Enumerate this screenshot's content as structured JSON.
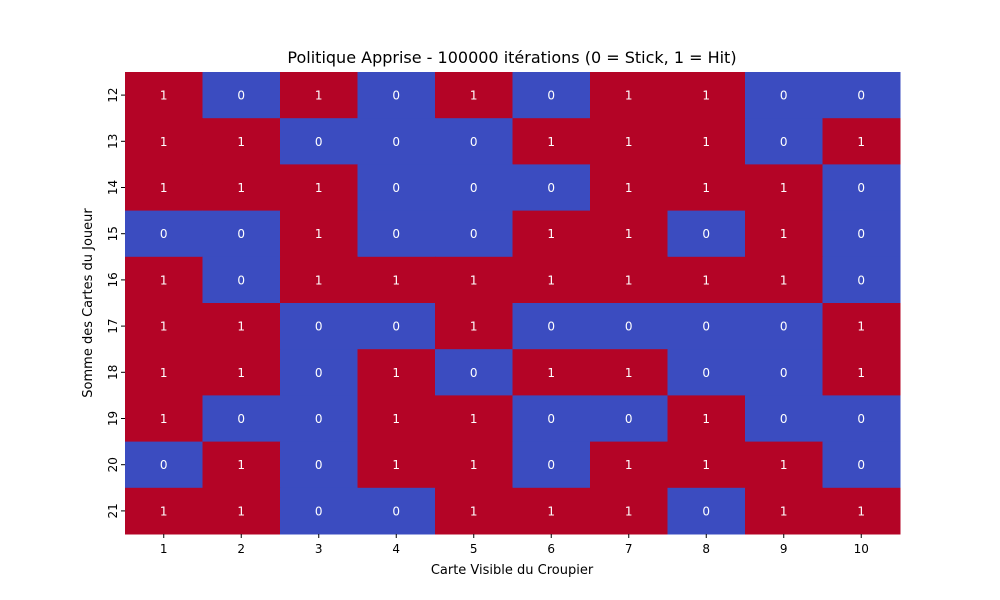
{
  "chart_data": {
    "type": "heatmap",
    "title": "Politique Apprise - 100000 itérations (0 = Stick, 1 = Hit)",
    "xlabel": "Carte Visible du Croupier",
    "ylabel": "Somme des Cartes du Joueur",
    "x_categories": [
      "1",
      "2",
      "3",
      "4",
      "5",
      "6",
      "7",
      "8",
      "9",
      "10"
    ],
    "y_categories": [
      "12",
      "13",
      "14",
      "15",
      "16",
      "17",
      "18",
      "19",
      "20",
      "21"
    ],
    "values": [
      [
        1,
        0,
        1,
        0,
        1,
        0,
        1,
        1,
        0,
        0
      ],
      [
        1,
        1,
        0,
        0,
        0,
        1,
        1,
        1,
        0,
        1
      ],
      [
        1,
        1,
        1,
        0,
        0,
        0,
        1,
        1,
        1,
        0
      ],
      [
        0,
        0,
        1,
        0,
        0,
        1,
        1,
        0,
        1,
        0
      ],
      [
        1,
        0,
        1,
        1,
        1,
        1,
        1,
        1,
        1,
        0
      ],
      [
        1,
        1,
        0,
        0,
        1,
        0,
        0,
        0,
        0,
        1
      ],
      [
        1,
        1,
        0,
        1,
        0,
        1,
        1,
        0,
        0,
        1
      ],
      [
        1,
        0,
        0,
        1,
        1,
        0,
        0,
        1,
        0,
        0
      ],
      [
        0,
        1,
        0,
        1,
        1,
        0,
        1,
        1,
        1,
        0
      ],
      [
        1,
        1,
        0,
        0,
        1,
        1,
        1,
        0,
        1,
        1
      ]
    ],
    "colors": {
      "0": "#3b4cc0",
      "1": "#b40426"
    },
    "grid": false
  }
}
